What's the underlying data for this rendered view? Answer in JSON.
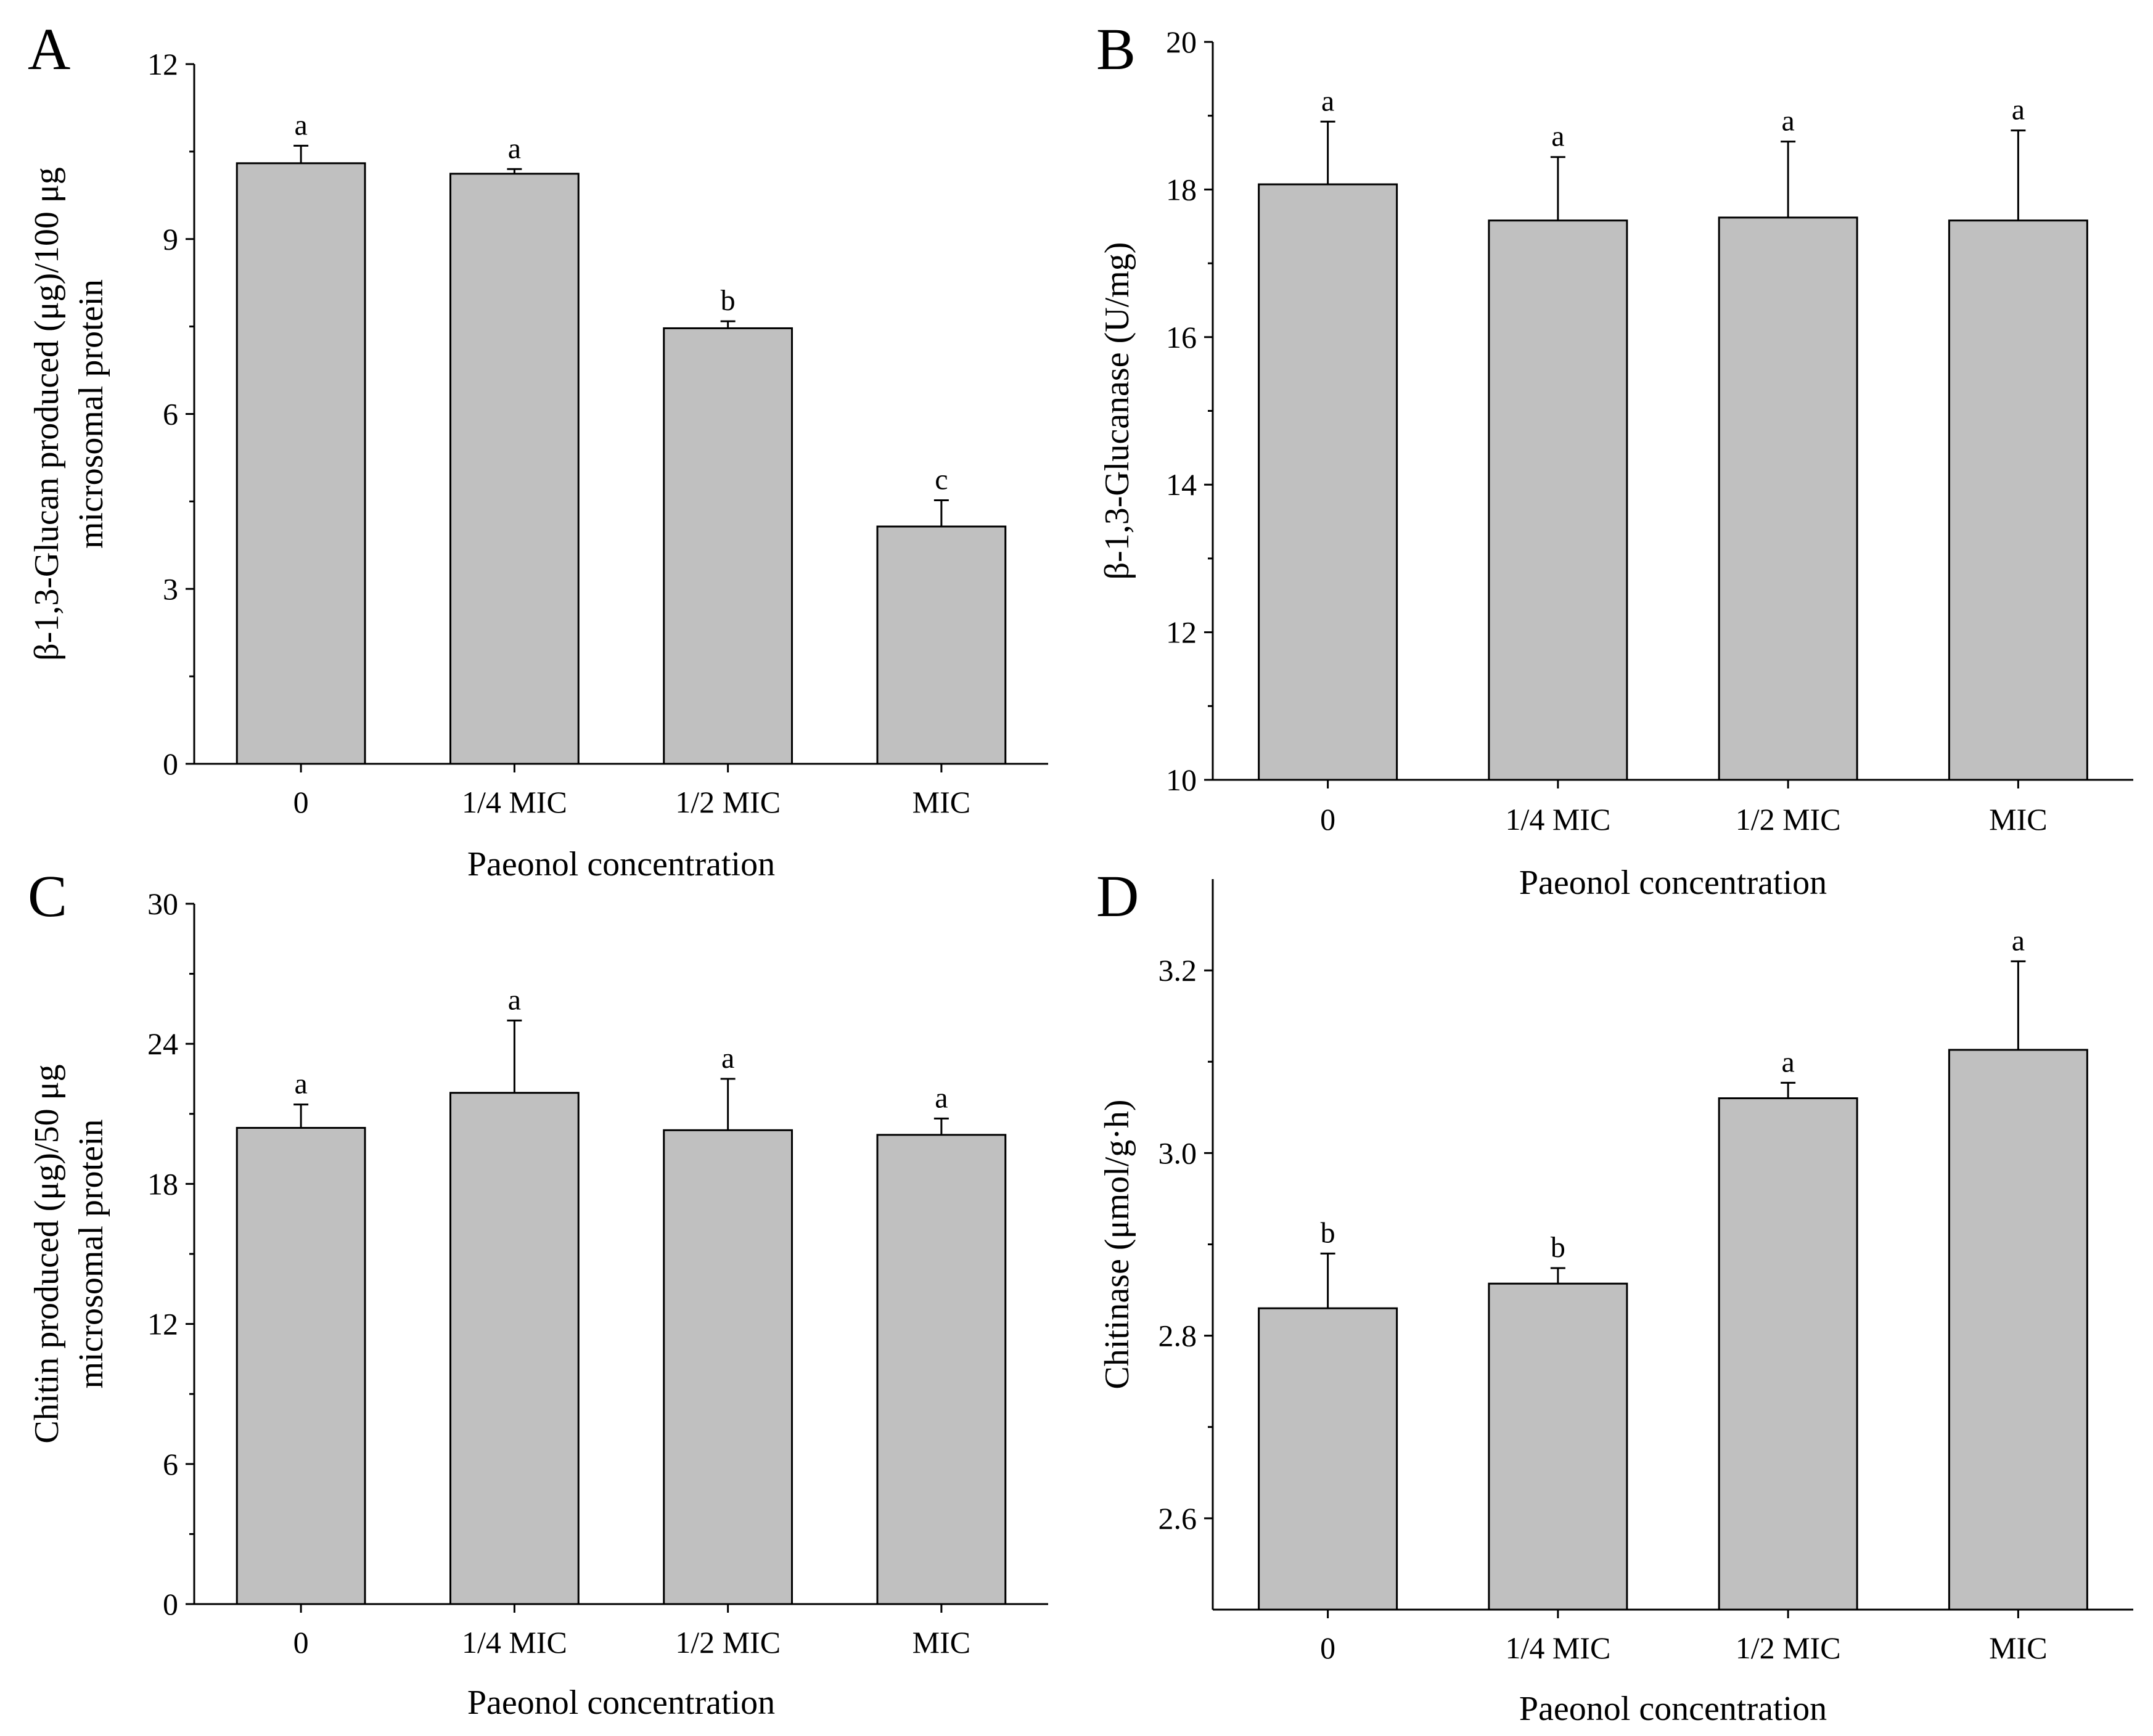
{
  "chart_data": [
    {
      "panel": "A",
      "type": "bar",
      "categories": [
        "0",
        "1/4 MIC",
        "1/2 MIC",
        "MIC"
      ],
      "values": [
        10.3,
        10.12,
        7.47,
        4.07
      ],
      "errors": [
        0.3,
        0.08,
        0.12,
        0.45
      ],
      "significance": [
        "a",
        "a",
        "b",
        "c"
      ],
      "xlabel": "Paeonol concentration",
      "ylabel_lines": [
        "β-1,3-Glucan produced (μg)/100 μg",
        "microsomal protein"
      ],
      "ylim": [
        0,
        12
      ],
      "yticks": [
        0,
        3,
        6,
        9,
        12
      ],
      "ytick_labels": [
        "0",
        "3",
        "6",
        "9",
        "12"
      ],
      "bar_color": "#c0c0c0"
    },
    {
      "panel": "B",
      "type": "bar",
      "categories": [
        "0",
        "1/4 MIC",
        "1/2 MIC",
        "MIC"
      ],
      "values": [
        18.07,
        17.58,
        17.62,
        17.58
      ],
      "errors": [
        0.85,
        0.86,
        1.03,
        1.22
      ],
      "significance": [
        "a",
        "a",
        "a",
        "a"
      ],
      "xlabel": "Paeonol concentration",
      "ylabel_lines": [
        "β-1,3-Glucanase (U/mg)"
      ],
      "ylim": [
        10,
        20
      ],
      "yticks": [
        10,
        12,
        14,
        16,
        18,
        20
      ],
      "ytick_labels": [
        "10",
        "12",
        "14",
        "16",
        "18",
        "20"
      ],
      "bar_color": "#c0c0c0"
    },
    {
      "panel": "C",
      "type": "bar",
      "categories": [
        "0",
        "1/4 MIC",
        "1/2 MIC",
        "MIC"
      ],
      "values": [
        20.4,
        21.9,
        20.3,
        20.1
      ],
      "errors": [
        1.0,
        3.1,
        2.2,
        0.7
      ],
      "significance": [
        "a",
        "a",
        "a",
        "a"
      ],
      "xlabel": "Paeonol concentration",
      "ylabel_lines": [
        "Chitin produced (μg)/50 μg",
        "microsomal protein"
      ],
      "ylim": [
        0,
        30
      ],
      "yticks": [
        0,
        6,
        12,
        18,
        24,
        30
      ],
      "ytick_labels": [
        "0",
        "6",
        "12",
        "18",
        "24",
        "30"
      ],
      "bar_color": "#c0c0c0"
    },
    {
      "panel": "D",
      "type": "bar",
      "categories": [
        "0",
        "1/4 MIC",
        "1/2 MIC",
        "MIC"
      ],
      "values": [
        2.83,
        2.857,
        3.06,
        3.113
      ],
      "errors": [
        0.06,
        0.017,
        0.017,
        0.097
      ],
      "significance": [
        "b",
        "b",
        "a",
        "a"
      ],
      "xlabel": "Paeonol concentration",
      "ylabel_lines": [
        "Chitinase (μmol/g·h)"
      ],
      "ylim": [
        2.5,
        3.3
      ],
      "yticks": [
        2.6,
        2.8,
        3.0,
        3.2
      ],
      "ytick_labels": [
        "2.6",
        "2.8",
        "3.0",
        "3.2"
      ],
      "bar_color": "#c0c0c0"
    }
  ]
}
